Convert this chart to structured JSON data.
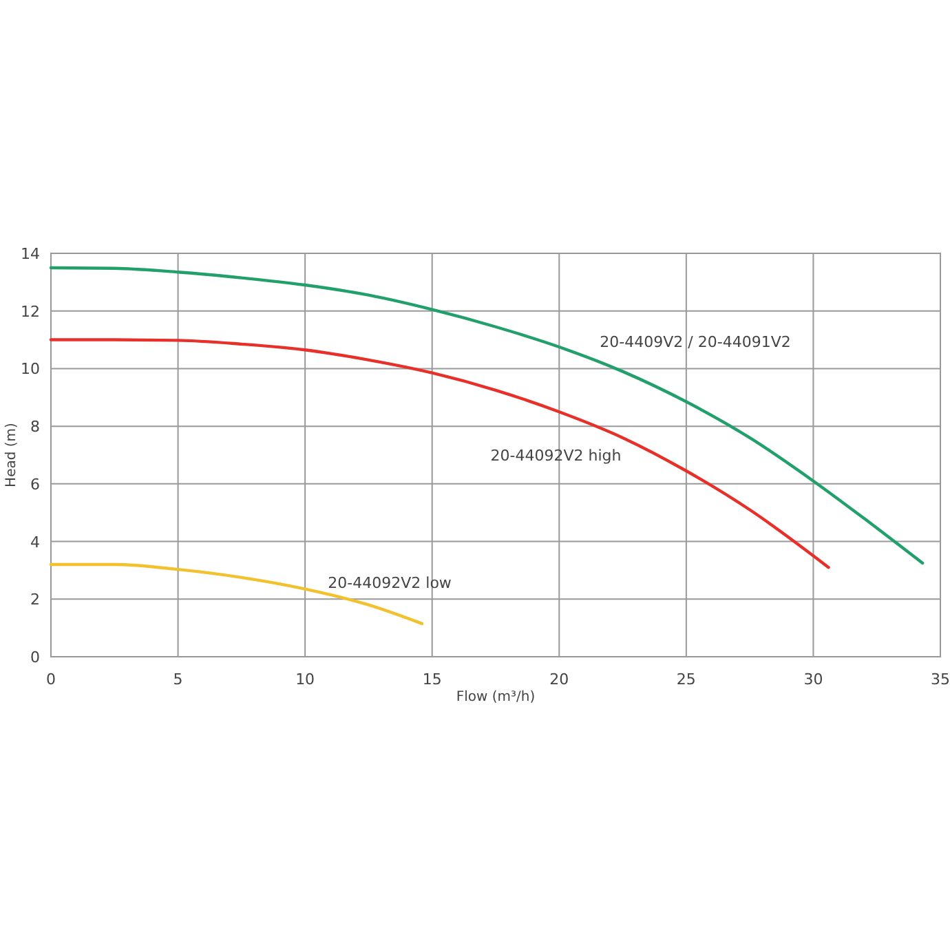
{
  "chart_data": {
    "type": "line",
    "xlabel": "Flow (m³/h)",
    "ylabel": "Head (m)",
    "xlim": [
      0,
      35
    ],
    "xticks": [
      0,
      5,
      10,
      15,
      20,
      25,
      30,
      35
    ],
    "ylim": [
      0,
      14
    ],
    "yticks": [
      0,
      2,
      4,
      6,
      8,
      10,
      12,
      14
    ],
    "grid": true,
    "marker": "none",
    "line_style": "solid",
    "series": [
      {
        "name": "20-4409V2 / 20-44091V2",
        "color": "#22a06b",
        "x": [
          0,
          2.5,
          5,
          7.5,
          10,
          12.5,
          15,
          17.5,
          20,
          22.5,
          25,
          27.5,
          30,
          32,
          34.3
        ],
        "values": [
          13.5,
          13.48,
          13.35,
          13.15,
          12.9,
          12.55,
          12.05,
          11.45,
          10.75,
          9.9,
          8.85,
          7.6,
          6.1,
          4.8,
          3.25
        ]
      },
      {
        "name": "20-44092V2 high",
        "color": "#e8302a",
        "x": [
          0,
          2.5,
          5,
          7.5,
          10,
          12.5,
          15,
          17.5,
          20,
          22.5,
          25,
          27.5,
          30.6
        ],
        "values": [
          11,
          11,
          10.98,
          10.85,
          10.65,
          10.3,
          9.85,
          9.25,
          8.5,
          7.6,
          6.45,
          5.1,
          3.1
        ]
      },
      {
        "name": "20-44092V2 low",
        "color": "#f2c12e",
        "x": [
          0,
          2.5,
          5,
          7.5,
          10,
          12.5,
          14.6
        ],
        "values": [
          3.2,
          3.2,
          3.03,
          2.75,
          2.35,
          1.8,
          1.15
        ]
      }
    ]
  }
}
